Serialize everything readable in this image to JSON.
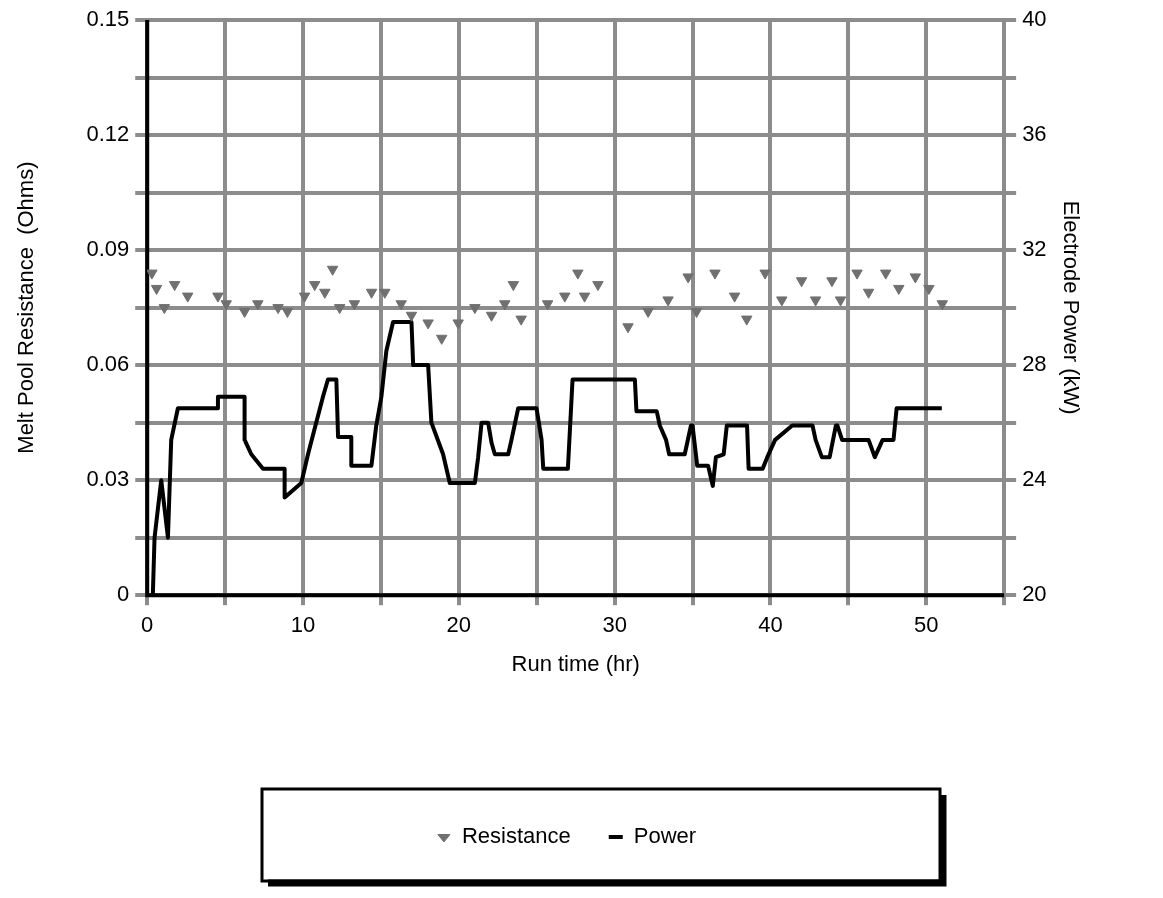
{
  "chart_data": {
    "type": "line",
    "xlabel": "Run time (hr)",
    "ylabel": "Melt Pool Resistance  (Ohms)",
    "y2label": "Electrode Power (kW)",
    "xlim": [
      0,
      55
    ],
    "xticks": [
      0,
      {
        "value": 5,
        "label": null
      },
      10,
      {
        "value": 15,
        "label": null
      },
      20,
      {
        "value": 25,
        "label": null
      },
      30,
      {
        "value": 35,
        "label": null
      },
      40,
      {
        "value": 45,
        "label": null
      },
      50,
      {
        "value": 55,
        "label": null
      }
    ],
    "ylim": [
      0,
      0.15
    ],
    "yticks": [
      0,
      {
        "value": 0.015,
        "label": null
      },
      0.03,
      {
        "value": 0.045,
        "label": null
      },
      0.06,
      {
        "value": 0.075,
        "label": null
      },
      0.09,
      {
        "value": 0.105,
        "label": null
      },
      0.12,
      {
        "value": 0.135,
        "label": null
      },
      0.15
    ],
    "y2lim": [
      20,
      40
    ],
    "y2ticks": [
      20,
      {
        "value": 22,
        "label": null
      },
      24,
      {
        "value": 26,
        "label": null
      },
      28,
      {
        "value": 30,
        "label": null
      },
      32,
      {
        "value": 34,
        "label": null
      },
      36,
      {
        "value": 38,
        "label": null
      },
      40
    ],
    "grid": true,
    "legend": "bottom",
    "series": [
      {
        "name": "Resistance",
        "type": "scatter",
        "marker": "triangle",
        "color": "#707070",
        "x": [
          0.3,
          0.6,
          1.1,
          1.76,
          2.6,
          4.54,
          5.07,
          6.25,
          7.1,
          8.4,
          9.0,
          10.1,
          10.75,
          11.4,
          11.9,
          12.35,
          13.3,
          14.4,
          15.25,
          16.3,
          16.96,
          18.03,
          18.9,
          19.96,
          21.03,
          22.1,
          22.95,
          23.5,
          24.0,
          25.7,
          26.8,
          27.64,
          28.07,
          28.93,
          30.86,
          32.15,
          33.43,
          34.72,
          35.26,
          36.44,
          37.7,
          38.48,
          39.66,
          40.73,
          42.0,
          42.9,
          43.95,
          44.5,
          45.56,
          46.3,
          47.4,
          48.24,
          49.3,
          50.17,
          51.03
        ],
        "values": [
          0.084,
          0.08,
          0.075,
          0.081,
          0.078,
          0.078,
          0.076,
          0.074,
          0.076,
          0.075,
          0.074,
          0.078,
          0.081,
          0.079,
          0.085,
          0.075,
          0.076,
          0.079,
          0.079,
          0.076,
          0.073,
          0.071,
          0.067,
          0.071,
          0.075,
          0.073,
          0.076,
          0.081,
          0.072,
          0.076,
          0.078,
          0.084,
          0.078,
          0.081,
          0.07,
          0.074,
          0.077,
          0.083,
          0.074,
          0.084,
          0.078,
          0.072,
          0.084,
          0.077,
          0.082,
          0.077,
          0.082,
          0.077,
          0.084,
          0.079,
          0.084,
          0.08,
          0.083,
          0.08,
          0.076
        ]
      },
      {
        "name": "Power",
        "type": "line",
        "axis": "y2",
        "marker": "none",
        "line_style": "solid",
        "color": "#000000",
        "x": [
          0.36,
          0.47,
          0.9,
          1.33,
          1.54,
          1.97,
          4.54,
          4.54,
          6.25,
          6.25,
          6.68,
          7.43,
          8.82,
          8.82,
          9.89,
          10.32,
          11.28,
          11.6,
          12.14,
          12.25,
          13.1,
          13.1,
          14.39,
          14.7,
          15.03,
          15.25,
          15.35,
          15.78,
          16.96,
          17.07,
          18.03,
          18.24,
          18.99,
          19.42,
          21.03,
          21.24,
          21.46,
          21.88,
          22.1,
          22.31,
          23.17,
          23.38,
          23.81,
          24.99,
          25.31,
          25.42,
          27.0,
          27.3,
          31.3,
          31.4,
          32.7,
          32.9,
          33.3,
          33.5,
          34.5,
          34.9,
          35.0,
          35.3,
          36.0,
          36.3,
          36.5,
          37.0,
          37.2,
          38.5,
          38.6,
          39.5,
          39.8,
          40.3,
          41.4,
          42.7,
          42.9,
          43.3,
          43.8,
          44.2,
          44.3,
          44.6,
          46.3,
          46.7,
          47.2,
          47.9,
          48.1,
          51.0
        ],
        "values": [
          20,
          22,
          24,
          22,
          25.4,
          26.5,
          26.5,
          26.9,
          26.9,
          25.4,
          24.9,
          24.4,
          24.4,
          23.4,
          23.9,
          24.9,
          26.9,
          27.5,
          27.5,
          25.5,
          25.5,
          24.5,
          24.5,
          25.9,
          26.9,
          28,
          28.5,
          29.5,
          29.5,
          28,
          28,
          26,
          24.9,
          23.9,
          23.9,
          24.8,
          26,
          26,
          25.3,
          24.9,
          24.9,
          25.4,
          26.5,
          26.5,
          25.4,
          24.4,
          24.4,
          27.5,
          27.5,
          26.4,
          26.4,
          25.9,
          25.4,
          24.9,
          24.9,
          25.9,
          25.9,
          24.5,
          24.5,
          23.8,
          24.8,
          24.9,
          25.9,
          25.9,
          24.4,
          24.4,
          24.8,
          25.4,
          25.9,
          25.9,
          25.4,
          24.8,
          24.8,
          25.9,
          25.9,
          25.4,
          25.4,
          24.8,
          25.4,
          25.4,
          26.5,
          26.5
        ]
      }
    ]
  }
}
